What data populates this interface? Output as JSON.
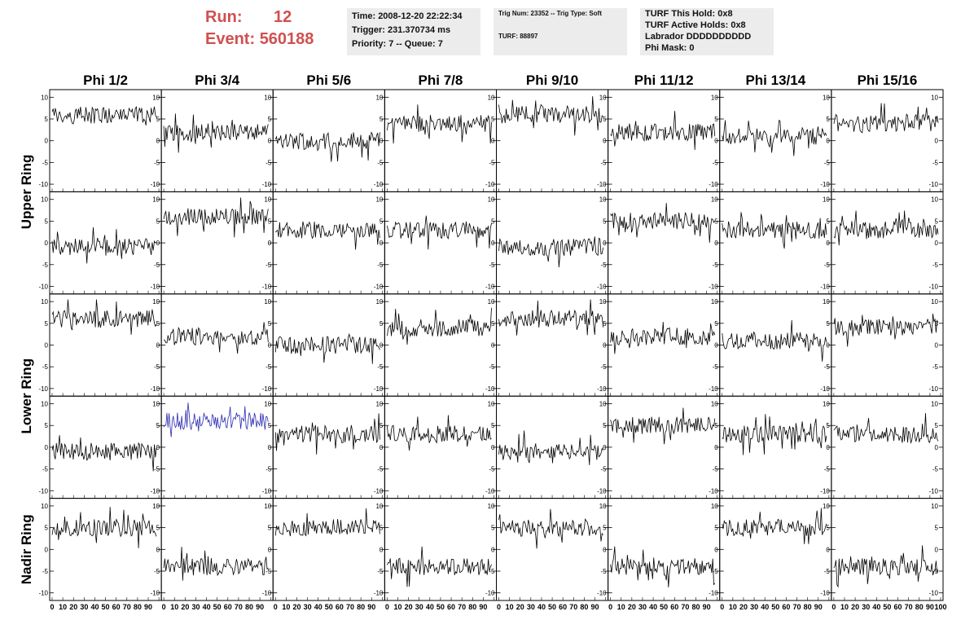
{
  "header": {
    "run_label": "Run:",
    "run_value": "12",
    "event_label": "Event:",
    "event_value": "560188"
  },
  "info_time": {
    "line1": "Time: 2008-12-20 22:22:34",
    "line2": "Trigger: 231.370734 ms",
    "line3": "Priority: 7 -- Queue: 7"
  },
  "info_trig": {
    "line1": "Trig Num: 23352 -- Trig Type: Soft",
    "line2": "TURF: 88897"
  },
  "info_turf": {
    "line1": "TURF This Hold: 0x8",
    "line2": "TURF Active Holds: 0x8",
    "line3": "Labrador DDDDDDDDDD",
    "line4": "Phi Mask: 0"
  },
  "colors": {
    "trace": "#000000",
    "highlight_trace": "#2a2ab0",
    "header_text": "#d05050",
    "info_bg": "#ececec"
  },
  "chart_data": {
    "type": "line",
    "columns": [
      "Phi 1/2",
      "Phi 3/4",
      "Phi 5/6",
      "Phi 7/8",
      "Phi 9/10",
      "Phi 11/12",
      "Phi 13/14",
      "Phi 15/16"
    ],
    "rows": [
      "Upper Ring",
      "Upper Ring",
      "Lower Ring",
      "Lower Ring",
      "Nadir Ring"
    ],
    "row_labels": [
      {
        "text": "Upper Ring",
        "spans_rows": [
          0,
          1
        ]
      },
      {
        "text": "Lower Ring",
        "spans_rows": [
          2,
          3
        ]
      },
      {
        "text": "Nadir Ring",
        "spans_rows": [
          4,
          4
        ]
      }
    ],
    "xlim": [
      0,
      100
    ],
    "ylim": [
      -11,
      11
    ],
    "x_tick_labels": [
      "0",
      "10",
      "20",
      "30",
      "40",
      "50",
      "60",
      "70",
      "80",
      "90",
      "100"
    ],
    "y_tick_labels": [
      "10",
      "5",
      "0",
      "-5",
      "-10"
    ],
    "samples_per_trace": 100,
    "trace_baselines": [
      [
        6,
        2,
        0,
        4,
        6,
        2,
        1,
        4
      ],
      [
        -1,
        6,
        3,
        3,
        -1,
        5,
        3,
        3
      ],
      [
        6,
        2,
        0,
        4,
        6,
        2,
        1,
        4
      ],
      [
        -1,
        6,
        3,
        3,
        -1,
        5,
        3,
        3
      ],
      [
        5,
        -4,
        5,
        -4,
        5,
        -4,
        5,
        -4
      ]
    ],
    "highlighted_panel": {
      "row": 3,
      "col": 1
    }
  }
}
